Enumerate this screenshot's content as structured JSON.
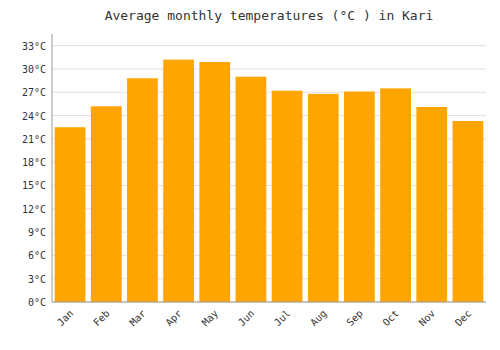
{
  "chart_data": {
    "type": "bar",
    "title": "Average monthly temperatures (°C ) in Kari",
    "categories": [
      "Jan",
      "Feb",
      "Mar",
      "Apr",
      "May",
      "Jun",
      "Jul",
      "Aug",
      "Sep",
      "Oct",
      "Nov",
      "Dec"
    ],
    "values": [
      22.5,
      25.2,
      28.8,
      31.2,
      30.9,
      29.0,
      27.2,
      26.8,
      27.1,
      27.5,
      25.1,
      23.3
    ],
    "color": "#FFA500",
    "ylim": [
      0,
      34.5
    ],
    "yticks": [
      {
        "value": 0,
        "label": "0°C"
      },
      {
        "value": 3,
        "label": "3°C"
      },
      {
        "value": 6,
        "label": "6°C"
      },
      {
        "value": 9,
        "label": "9°C"
      },
      {
        "value": 12,
        "label": "12°C"
      },
      {
        "value": 15,
        "label": "15°C"
      },
      {
        "value": 18,
        "label": "18°C"
      },
      {
        "value": 21,
        "label": "21°C"
      },
      {
        "value": 24,
        "label": "24°C"
      },
      {
        "value": 27,
        "label": "27°C"
      },
      {
        "value": 30,
        "label": "30°C"
      },
      {
        "value": 33,
        "label": "33°C"
      }
    ],
    "grid": true
  }
}
